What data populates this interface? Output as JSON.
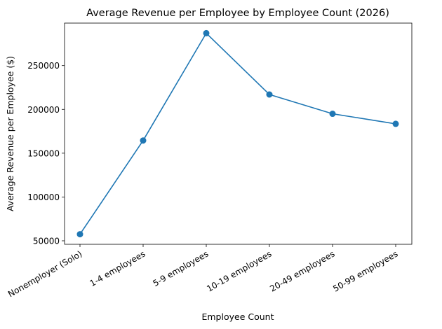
{
  "chart_data": {
    "type": "line",
    "title": "Average Revenue per Employee by Employee Count (2026)",
    "xlabel": "Employee Count",
    "ylabel": "Average Revenue per Employee ($)",
    "categories": [
      "Nonemployer (Solo)",
      "1-4 employees",
      "5-9 employees",
      "10-19 employees",
      "20-49 employees",
      "50-99 employees"
    ],
    "series": [
      {
        "name": "Average Revenue per Employee",
        "values": [
          57500,
          164500,
          287000,
          217000,
          195000,
          183500
        ]
      }
    ],
    "y_ticks": [
      50000,
      100000,
      150000,
      200000,
      250000
    ],
    "y_tick_labels": [
      "50000",
      "100000",
      "150000",
      "200000",
      "250000"
    ],
    "ylim": [
      46000,
      298500
    ],
    "grid": false,
    "line_color": "#1f77b4",
    "marker": "circle"
  }
}
